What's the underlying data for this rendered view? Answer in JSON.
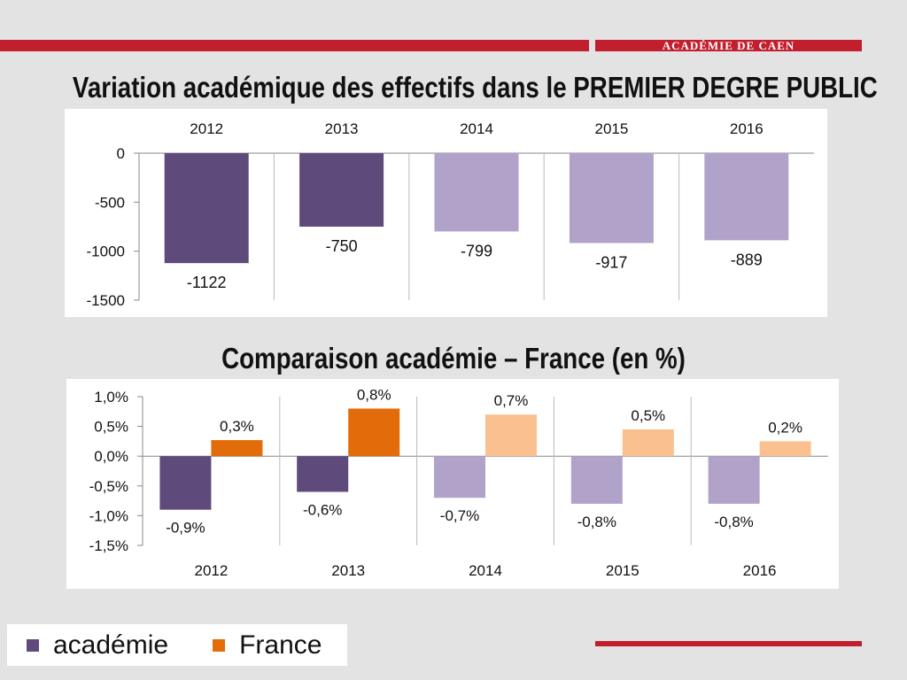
{
  "brand": {
    "name": "ACADÉMIE DE CAEN"
  },
  "colors": {
    "brand_red": "#c21f2e",
    "academie_dark": "#5f4a7c",
    "academie_light": "#b1a2c9",
    "france_dark": "#e36c0a",
    "france_light": "#fac090"
  },
  "legend": {
    "items": [
      {
        "label": "académie",
        "color": "#5f4a7c"
      },
      {
        "label": "France",
        "color": "#e36c0a"
      }
    ]
  },
  "chart_data": [
    {
      "type": "bar",
      "title": "Variation académique des effectifs dans le PREMIER DEGRE PUBLIC",
      "categories": [
        "2012",
        "2013",
        "2014",
        "2015",
        "2016"
      ],
      "series": [
        {
          "values": [
            -1122,
            -750,
            -799,
            -917,
            -889
          ],
          "labels": [
            "-1122",
            "-750",
            "-799",
            "-917",
            "-889"
          ],
          "colors": [
            "#5f4a7c",
            "#5f4a7c",
            "#b1a2c9",
            "#b1a2c9",
            "#b1a2c9"
          ]
        }
      ],
      "ylim": [
        -1500,
        0
      ],
      "yticks": [
        0,
        -500,
        -1000,
        -1500
      ],
      "ytick_labels": [
        "0",
        "-500",
        "-1000",
        "-1500"
      ],
      "category_axis": "top",
      "grid": false
    },
    {
      "type": "bar",
      "title": "Comparaison académie – France (en %)",
      "categories": [
        "2012",
        "2013",
        "2014",
        "2015",
        "2016"
      ],
      "series": [
        {
          "name": "académie",
          "values": [
            -0.9,
            -0.6,
            -0.7,
            -0.8,
            -0.8
          ],
          "labels": [
            "-0,9%",
            "-0,6%",
            "-0,7%",
            "-0,8%",
            "-0,8%"
          ],
          "colors": [
            "#5f4a7c",
            "#5f4a7c",
            "#b1a2c9",
            "#b1a2c9",
            "#b1a2c9"
          ]
        },
        {
          "name": "France",
          "values": [
            0.27,
            0.8,
            0.7,
            0.45,
            0.25
          ],
          "labels": [
            "0,3%",
            "0,8%",
            "0,7%",
            "0,5%",
            "0,2%"
          ],
          "colors": [
            "#e36c0a",
            "#e36c0a",
            "#fac090",
            "#fac090",
            "#fac090"
          ]
        }
      ],
      "ylim": [
        -1.5,
        1.0
      ],
      "yticks": [
        1.0,
        0.5,
        0.0,
        -0.5,
        -1.0,
        -1.5
      ],
      "ytick_labels": [
        "1,0%",
        "0,5%",
        "0,0%",
        "-0,5%",
        "-1,0%",
        "-1,5%"
      ],
      "category_axis": "bottom",
      "grid": false,
      "legend": "bottom-left"
    }
  ]
}
